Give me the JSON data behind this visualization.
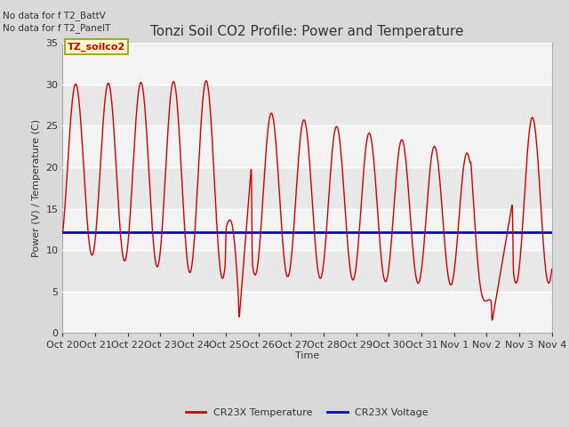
{
  "title": "Tonzi Soil CO2 Profile: Power and Temperature",
  "ylabel": "Power (V) / Temperature (C)",
  "xlabel": "Time",
  "no_data_text": [
    "No data for f T2_BattV",
    "No data for f T2_PanelT"
  ],
  "legend_label_box": "TZ_soilco2",
  "legend_entries": [
    "CR23X Temperature",
    "CR23X Voltage"
  ],
  "legend_colors": [
    "#cc0000",
    "#0000cc"
  ],
  "ylim": [
    0,
    35
  ],
  "yticks": [
    0,
    5,
    10,
    15,
    20,
    25,
    30,
    35
  ],
  "xtick_labels": [
    "Oct 20",
    "Oct 21",
    "Oct 22",
    "Oct 23",
    "Oct 24",
    "Oct 25",
    "Oct 26",
    "Oct 27",
    "Oct 28",
    "Oct 29",
    "Oct 30",
    "Oct 31",
    "Nov 1",
    "Nov 2",
    "Nov 3",
    "Nov 4"
  ],
  "voltage_value": 12.2,
  "temp_color": "#cc0000",
  "voltage_color": "#0000cc",
  "fig_bg_color": "#d9d9d9",
  "plot_bg_color": "#e8e8e8",
  "grid_color": "#ffffff",
  "title_fontsize": 11,
  "label_fontsize": 8,
  "tick_fontsize": 8,
  "box_facecolor": "#ffffcc",
  "box_edgecolor": "#999900"
}
